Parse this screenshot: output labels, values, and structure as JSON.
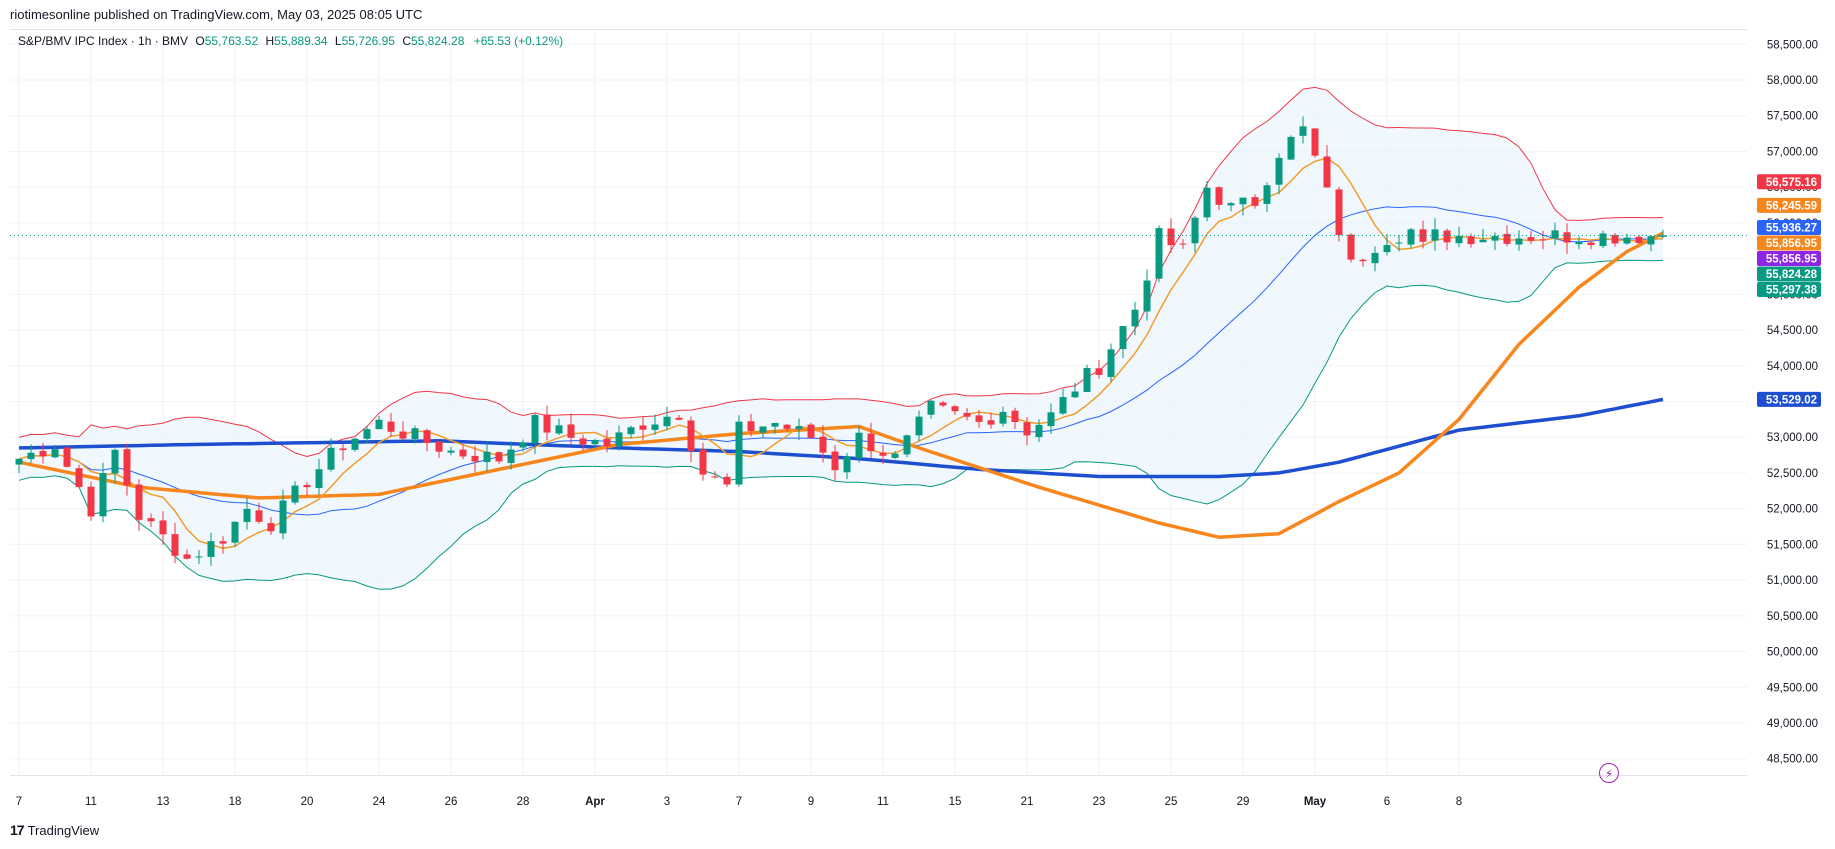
{
  "header": {
    "publisher_text": "riotimesonline published on TradingView.com, May 03, 2025 08:05 UTC"
  },
  "legend": {
    "symbol": "S&P/BMV IPC Index · 1h · BMV",
    "open_label": "O",
    "open": "55,763.52",
    "high_label": "H",
    "high": "55,889.34",
    "low_label": "L",
    "low": "55,726.95",
    "close_label": "C",
    "close": "55,824.28",
    "change": "+65.53 (+0.12%)"
  },
  "footer": {
    "brand": "TradingView",
    "logo": "17"
  },
  "icons": {
    "alert": "lightning-bolt-icon",
    "brand": "tradingview-logo-icon"
  },
  "colors": {
    "up": "#089981",
    "down": "#f23645",
    "ma_orange": "#f7861d",
    "ma_orange_thin": "#f39c2d",
    "ma_blue": "#1e4fd1",
    "bb_upper": "#f23645",
    "bb_lower": "#089981",
    "bb_basis": "#2962ff",
    "bb_fill": "#e3f2fd",
    "tag_purple": "#8e24e8"
  },
  "chart_data": {
    "type": "candlestick",
    "title": "S&P/BMV IPC Index · 1h · BMV",
    "y_axis": {
      "min": 48300,
      "max": 58700,
      "ticks": [
        "48,500.00",
        "49,000.00",
        "49,500.00",
        "50,000.00",
        "50,500.00",
        "51,000.00",
        "51,500.00",
        "52,000.00",
        "52,500.00",
        "53,000.00",
        "53,500.00",
        "54,000.00",
        "54,500.00",
        "55,000.00",
        "55,500.00",
        "56,000.00",
        "56,500.00",
        "57,000.00",
        "57,500.00",
        "58,000.00",
        "58,500.00"
      ],
      "tick_values": [
        48500,
        49000,
        49500,
        50000,
        50500,
        51000,
        51500,
        52000,
        52500,
        53000,
        53500,
        54000,
        54500,
        55000,
        55500,
        56000,
        56500,
        57000,
        57500,
        58000,
        58500
      ]
    },
    "x_axis": {
      "labels": [
        "7",
        "11",
        "13",
        "18",
        "20",
        "24",
        "26",
        "28",
        "Apr",
        "3",
        "7",
        "9",
        "11",
        "15",
        "21",
        "23",
        "25",
        "29",
        "May",
        "6",
        "8"
      ],
      "label_index": [
        0,
        6,
        12,
        18,
        24,
        30,
        36,
        42,
        48,
        54,
        60,
        66,
        72,
        78,
        84,
        90,
        96,
        102,
        108,
        114,
        120
      ],
      "bold_labels": [
        "Apr",
        "May"
      ]
    },
    "grid": true,
    "last_price": 55824.28,
    "price_tags": [
      {
        "label": "56,575.16",
        "value": 56575.16,
        "color": "#f23645"
      },
      {
        "label": "56,245.59",
        "value": 56245.59,
        "color": "#f7861d"
      },
      {
        "label": "55,936.27",
        "value": 55936.27,
        "color": "#2962ff"
      },
      {
        "label": "55,856.95",
        "value": 55856.95,
        "color": "#f7861d"
      },
      {
        "label": "55,856.95",
        "value": 55856.95,
        "color": "#8e24e8"
      },
      {
        "label": "55,824.28",
        "value": 55824.28,
        "color": "#089981"
      },
      {
        "label": "55,297.38",
        "value": 55297.38,
        "color": "#089981"
      },
      {
        "label": "53,529.02",
        "value": 53529.02,
        "color": "#1e4fd1"
      }
    ],
    "series_close_anchors": [
      [
        0,
        52700
      ],
      [
        3,
        52900
      ],
      [
        6,
        52000
      ],
      [
        8,
        52800
      ],
      [
        10,
        51900
      ],
      [
        14,
        51300
      ],
      [
        17,
        51600
      ],
      [
        19,
        52000
      ],
      [
        21,
        51800
      ],
      [
        24,
        52400
      ],
      [
        27,
        52900
      ],
      [
        30,
        53200
      ],
      [
        33,
        53000
      ],
      [
        36,
        52800
      ],
      [
        40,
        52700
      ],
      [
        43,
        53200
      ],
      [
        46,
        53000
      ],
      [
        49,
        52900
      ],
      [
        52,
        53200
      ],
      [
        55,
        53350
      ],
      [
        57,
        52500
      ],
      [
        59,
        52300
      ],
      [
        60,
        53100
      ],
      [
        63,
        53200
      ],
      [
        66,
        53000
      ],
      [
        68,
        52600
      ],
      [
        70,
        53000
      ],
      [
        73,
        52700
      ],
      [
        76,
        53400
      ],
      [
        78,
        53300
      ],
      [
        80,
        53200
      ],
      [
        82,
        53400
      ],
      [
        84,
        53100
      ],
      [
        86,
        53300
      ],
      [
        88,
        53700
      ],
      [
        90,
        54000
      ],
      [
        93,
        54800
      ],
      [
        95,
        55800
      ],
      [
        97,
        55600
      ],
      [
        99,
        56500
      ],
      [
        101,
        56200
      ],
      [
        103,
        56300
      ],
      [
        105,
        57000
      ],
      [
        107,
        57300
      ],
      [
        108,
        56900
      ],
      [
        110,
        55900
      ],
      [
        111,
        55400
      ],
      [
        113,
        55700
      ],
      [
        114,
        55800
      ],
      [
        116,
        55900
      ],
      [
        117,
        55650
      ],
      [
        118,
        55820
      ]
    ],
    "ma_thick_blue": [
      [
        0,
        52850
      ],
      [
        15,
        52900
      ],
      [
        35,
        52950
      ],
      [
        50,
        52850
      ],
      [
        60,
        52800
      ],
      [
        70,
        52700
      ],
      [
        80,
        52550
      ],
      [
        90,
        52450
      ],
      [
        100,
        52450
      ],
      [
        105,
        52500
      ],
      [
        110,
        52650
      ],
      [
        120,
        53100
      ],
      [
        130,
        53300
      ],
      [
        137,
        53529
      ]
    ],
    "ma_thick_orange": [
      [
        0,
        52650
      ],
      [
        10,
        52300
      ],
      [
        20,
        52150
      ],
      [
        30,
        52200
      ],
      [
        40,
        52550
      ],
      [
        50,
        52900
      ],
      [
        60,
        53050
      ],
      [
        70,
        53150
      ],
      [
        75,
        52850
      ],
      [
        85,
        52300
      ],
      [
        95,
        51800
      ],
      [
        100,
        51600
      ],
      [
        105,
        51650
      ],
      [
        110,
        52100
      ],
      [
        115,
        52500
      ],
      [
        120,
        53250
      ],
      [
        125,
        54300
      ],
      [
        130,
        55100
      ],
      [
        134,
        55600
      ],
      [
        137,
        55857
      ]
    ],
    "series": [
      {
        "name": "candles",
        "type": "candlestick"
      },
      {
        "name": "ma_thin_orange",
        "type": "line"
      },
      {
        "name": "bollinger_basis",
        "type": "line"
      },
      {
        "name": "bollinger_upper",
        "type": "line"
      },
      {
        "name": "bollinger_lower",
        "type": "line"
      },
      {
        "name": "ma_thick_orange",
        "type": "line"
      },
      {
        "name": "ma_thick_blue",
        "type": "line"
      }
    ]
  }
}
